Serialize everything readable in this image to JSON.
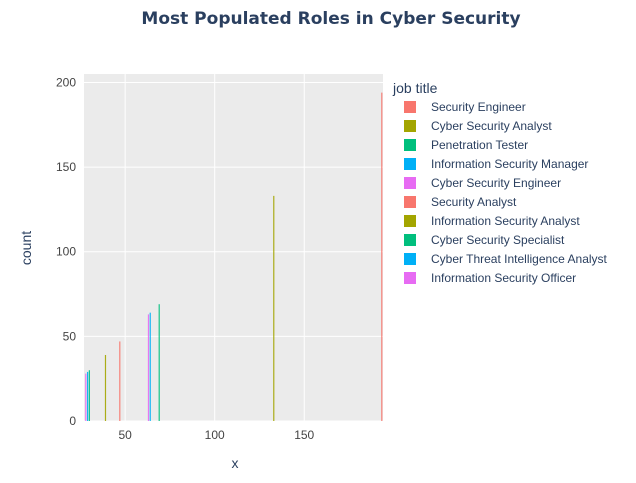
{
  "chart_data": {
    "type": "bar",
    "title": "Most Populated Roles in Cyber Security",
    "xlabel": "x",
    "ylabel": "count",
    "xlim": [
      27,
      194
    ],
    "ylim": [
      0,
      205
    ],
    "x_ticks": [
      50,
      100,
      150
    ],
    "y_ticks": [
      0,
      50,
      100,
      150,
      200
    ],
    "grid": true,
    "legend": {
      "title": "job title",
      "placement": "right"
    },
    "series": [
      {
        "name": "Security Engineer",
        "color": "#F8766D",
        "x": 194,
        "value": 194
      },
      {
        "name": "Cyber Security Analyst",
        "color": "#A3A500",
        "x": 133,
        "value": 133
      },
      {
        "name": "Penetration Tester",
        "color": "#00BF7D",
        "x": 69,
        "value": 69
      },
      {
        "name": "Information Security Manager",
        "color": "#00B0F6",
        "x": 64,
        "value": 64
      },
      {
        "name": "Cyber Security Engineer",
        "color": "#E76BF3",
        "x": 63,
        "value": 63
      },
      {
        "name": "Security Analyst",
        "color": "#F8766D",
        "x": 47,
        "value": 47
      },
      {
        "name": "Information Security Analyst",
        "color": "#A3A500",
        "x": 39,
        "value": 39
      },
      {
        "name": "Cyber Security Specialist",
        "color": "#00BF7D",
        "x": 30,
        "value": 30
      },
      {
        "name": "Cyber Threat Intelligence Analyst",
        "color": "#00B0F6",
        "x": 29,
        "value": 29
      },
      {
        "name": "Information Security Officer",
        "color": "#E76BF3",
        "x": 28,
        "value": 28
      }
    ]
  }
}
